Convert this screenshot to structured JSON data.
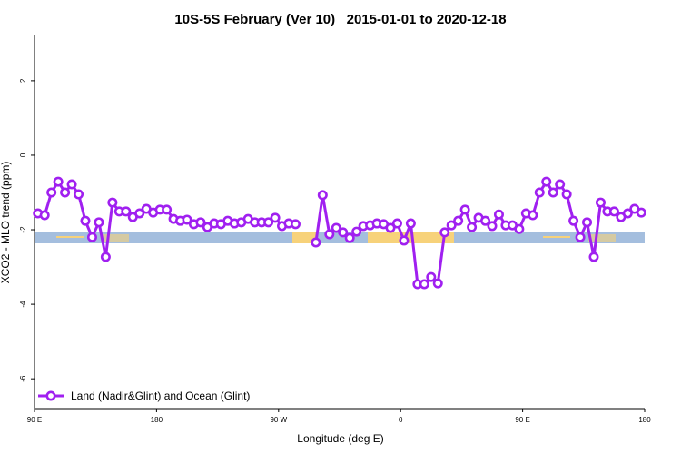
{
  "chart_data": {
    "type": "line",
    "title": "10S-5S February (Ver 10)   2015-01-01 to 2020-12-18",
    "xlabel": "Longitude (deg E)",
    "ylabel": "XCO2 - MLO trend (ppm)",
    "xlim": [
      90,
      540
    ],
    "xticks": [
      {
        "value": 90,
        "label": "90 E"
      },
      180,
      {
        "value": 270,
        "label": "90 W"
      },
      {
        "value": 360,
        "label": "0"
      },
      {
        "value": 450,
        "label": "90 E"
      },
      {
        "value": 540,
        "label": "180"
      }
    ],
    "ylim": [
      -6.8,
      3.24
    ],
    "yticks": [
      2,
      0,
      -2,
      -4,
      -6
    ],
    "legend": "bottom-left",
    "x": [
      92.5,
      97.5,
      102.5,
      107.5,
      112.5,
      117.5,
      122.5,
      127.5,
      132.5,
      137.5,
      142.5,
      147.5,
      152.5,
      157.5,
      162.5,
      167.5,
      172.5,
      177.5,
      182.5,
      187.5,
      192.5,
      197.5,
      202.5,
      207.5,
      212.5,
      217.5,
      222.5,
      227.5,
      232.5,
      237.5,
      242.5,
      247.5,
      252.5,
      257.5,
      262.5,
      267.5,
      272.5,
      277.5,
      282.5,
      287.5,
      292.5,
      297.5,
      302.5,
      307.5,
      312.5,
      317.5,
      322.5,
      327.5,
      332.5,
      337.5,
      342.5,
      347.5,
      352.5,
      357.5,
      362.5,
      367.5,
      372.5,
      377.5,
      382.5,
      387.5,
      392.5,
      397.5,
      402.5,
      407.5,
      412.5,
      417.5,
      422.5,
      427.5,
      432.5,
      437.5,
      442.5,
      447.5,
      452.5,
      457.5,
      462.5,
      467.5,
      472.5,
      477.5,
      482.5,
      487.5,
      492.5,
      497.5,
      502.5,
      507.5,
      512.5,
      517.5,
      522.5,
      527.5,
      532.5,
      537.5
    ],
    "series": [
      {
        "name": "Land (Nadir&Glint) and Ocean (Glint)",
        "color": "#a020f0",
        "values": [
          -1.56,
          -1.61,
          -1.0,
          -0.71,
          -1.0,
          -0.78,
          -1.05,
          -1.76,
          -2.2,
          -1.8,
          -2.73,
          -1.27,
          -1.51,
          -1.51,
          -1.66,
          -1.56,
          -1.44,
          -1.54,
          -1.46,
          -1.46,
          -1.71,
          -1.76,
          -1.73,
          -1.85,
          -1.8,
          -1.93,
          -1.83,
          -1.85,
          -1.76,
          -1.83,
          -1.8,
          -1.71,
          -1.8,
          -1.8,
          -1.8,
          -1.68,
          -1.9,
          -1.83,
          -1.85,
          null,
          null,
          -2.34,
          -1.07,
          -2.12,
          -1.95,
          -2.07,
          -2.22,
          -2.05,
          -1.9,
          -1.88,
          -1.83,
          -1.85,
          -1.95,
          -1.83,
          -2.29,
          -1.83,
          -3.46,
          -3.46,
          -3.27,
          -3.44,
          -2.07,
          -1.88,
          -1.76,
          -1.46,
          -1.93,
          -1.68,
          -1.76,
          -1.9,
          -1.59,
          -1.88,
          -1.88,
          -1.98,
          -1.56,
          -1.61,
          -1.0,
          -0.71,
          -1.0,
          -0.78,
          -1.05,
          -1.76,
          -2.2,
          -1.8,
          -2.73,
          -1.27,
          -1.51,
          -1.51,
          -1.66,
          -1.56,
          -1.44,
          -1.54
        ]
      }
    ]
  }
}
